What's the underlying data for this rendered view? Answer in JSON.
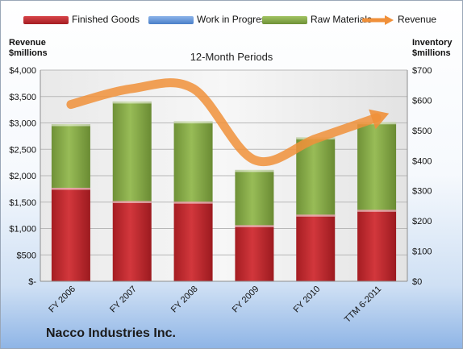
{
  "chart_data": {
    "type": "bar",
    "subtitle": "12-Month Periods",
    "company": "Nacco Industries Inc.",
    "left_axis": {
      "title_line1": "Revenue",
      "title_line2": "$millions",
      "min": 0,
      "max": 4000,
      "step": 500,
      "tick_labels": [
        "$-",
        "$500",
        "$1,000",
        "$1,500",
        "$2,000",
        "$2,500",
        "$3,000",
        "$3,500",
        "$4,000"
      ]
    },
    "right_axis": {
      "title_line1": "Inventory",
      "title_line2": "$millions",
      "min": 0,
      "max": 700,
      "step": 100,
      "tick_labels": [
        "$0",
        "$100",
        "$200",
        "$300",
        "$400",
        "$500",
        "$600",
        "$700"
      ]
    },
    "categories": [
      "FY 2006",
      "FY 2007",
      "FY 2008",
      "FY 2009",
      "FY 2010",
      "TTM 6-2011"
    ],
    "series": [
      {
        "name": "Finished Goods",
        "type": "stacked-bar",
        "axis": "right",
        "color": "#c0272d",
        "values": [
          310,
          266,
          264,
          186,
          221,
          237
        ]
      },
      {
        "name": "Work in Progress",
        "type": "stacked-bar",
        "axis": "right",
        "color": "#5b8ed6",
        "values": [
          0,
          0,
          0,
          0,
          0,
          0
        ]
      },
      {
        "name": "Raw Materials",
        "type": "stacked-bar",
        "axis": "right",
        "color": "#8aab4a",
        "values": [
          211,
          330,
          266,
          183,
          256,
          290
        ]
      },
      {
        "name": "Revenue",
        "type": "line",
        "axis": "left",
        "color": "#f0903a",
        "values": [
          3350,
          3650,
          3650,
          2300,
          2700,
          3100
        ]
      }
    ],
    "grid": true,
    "legend_position": "top"
  }
}
